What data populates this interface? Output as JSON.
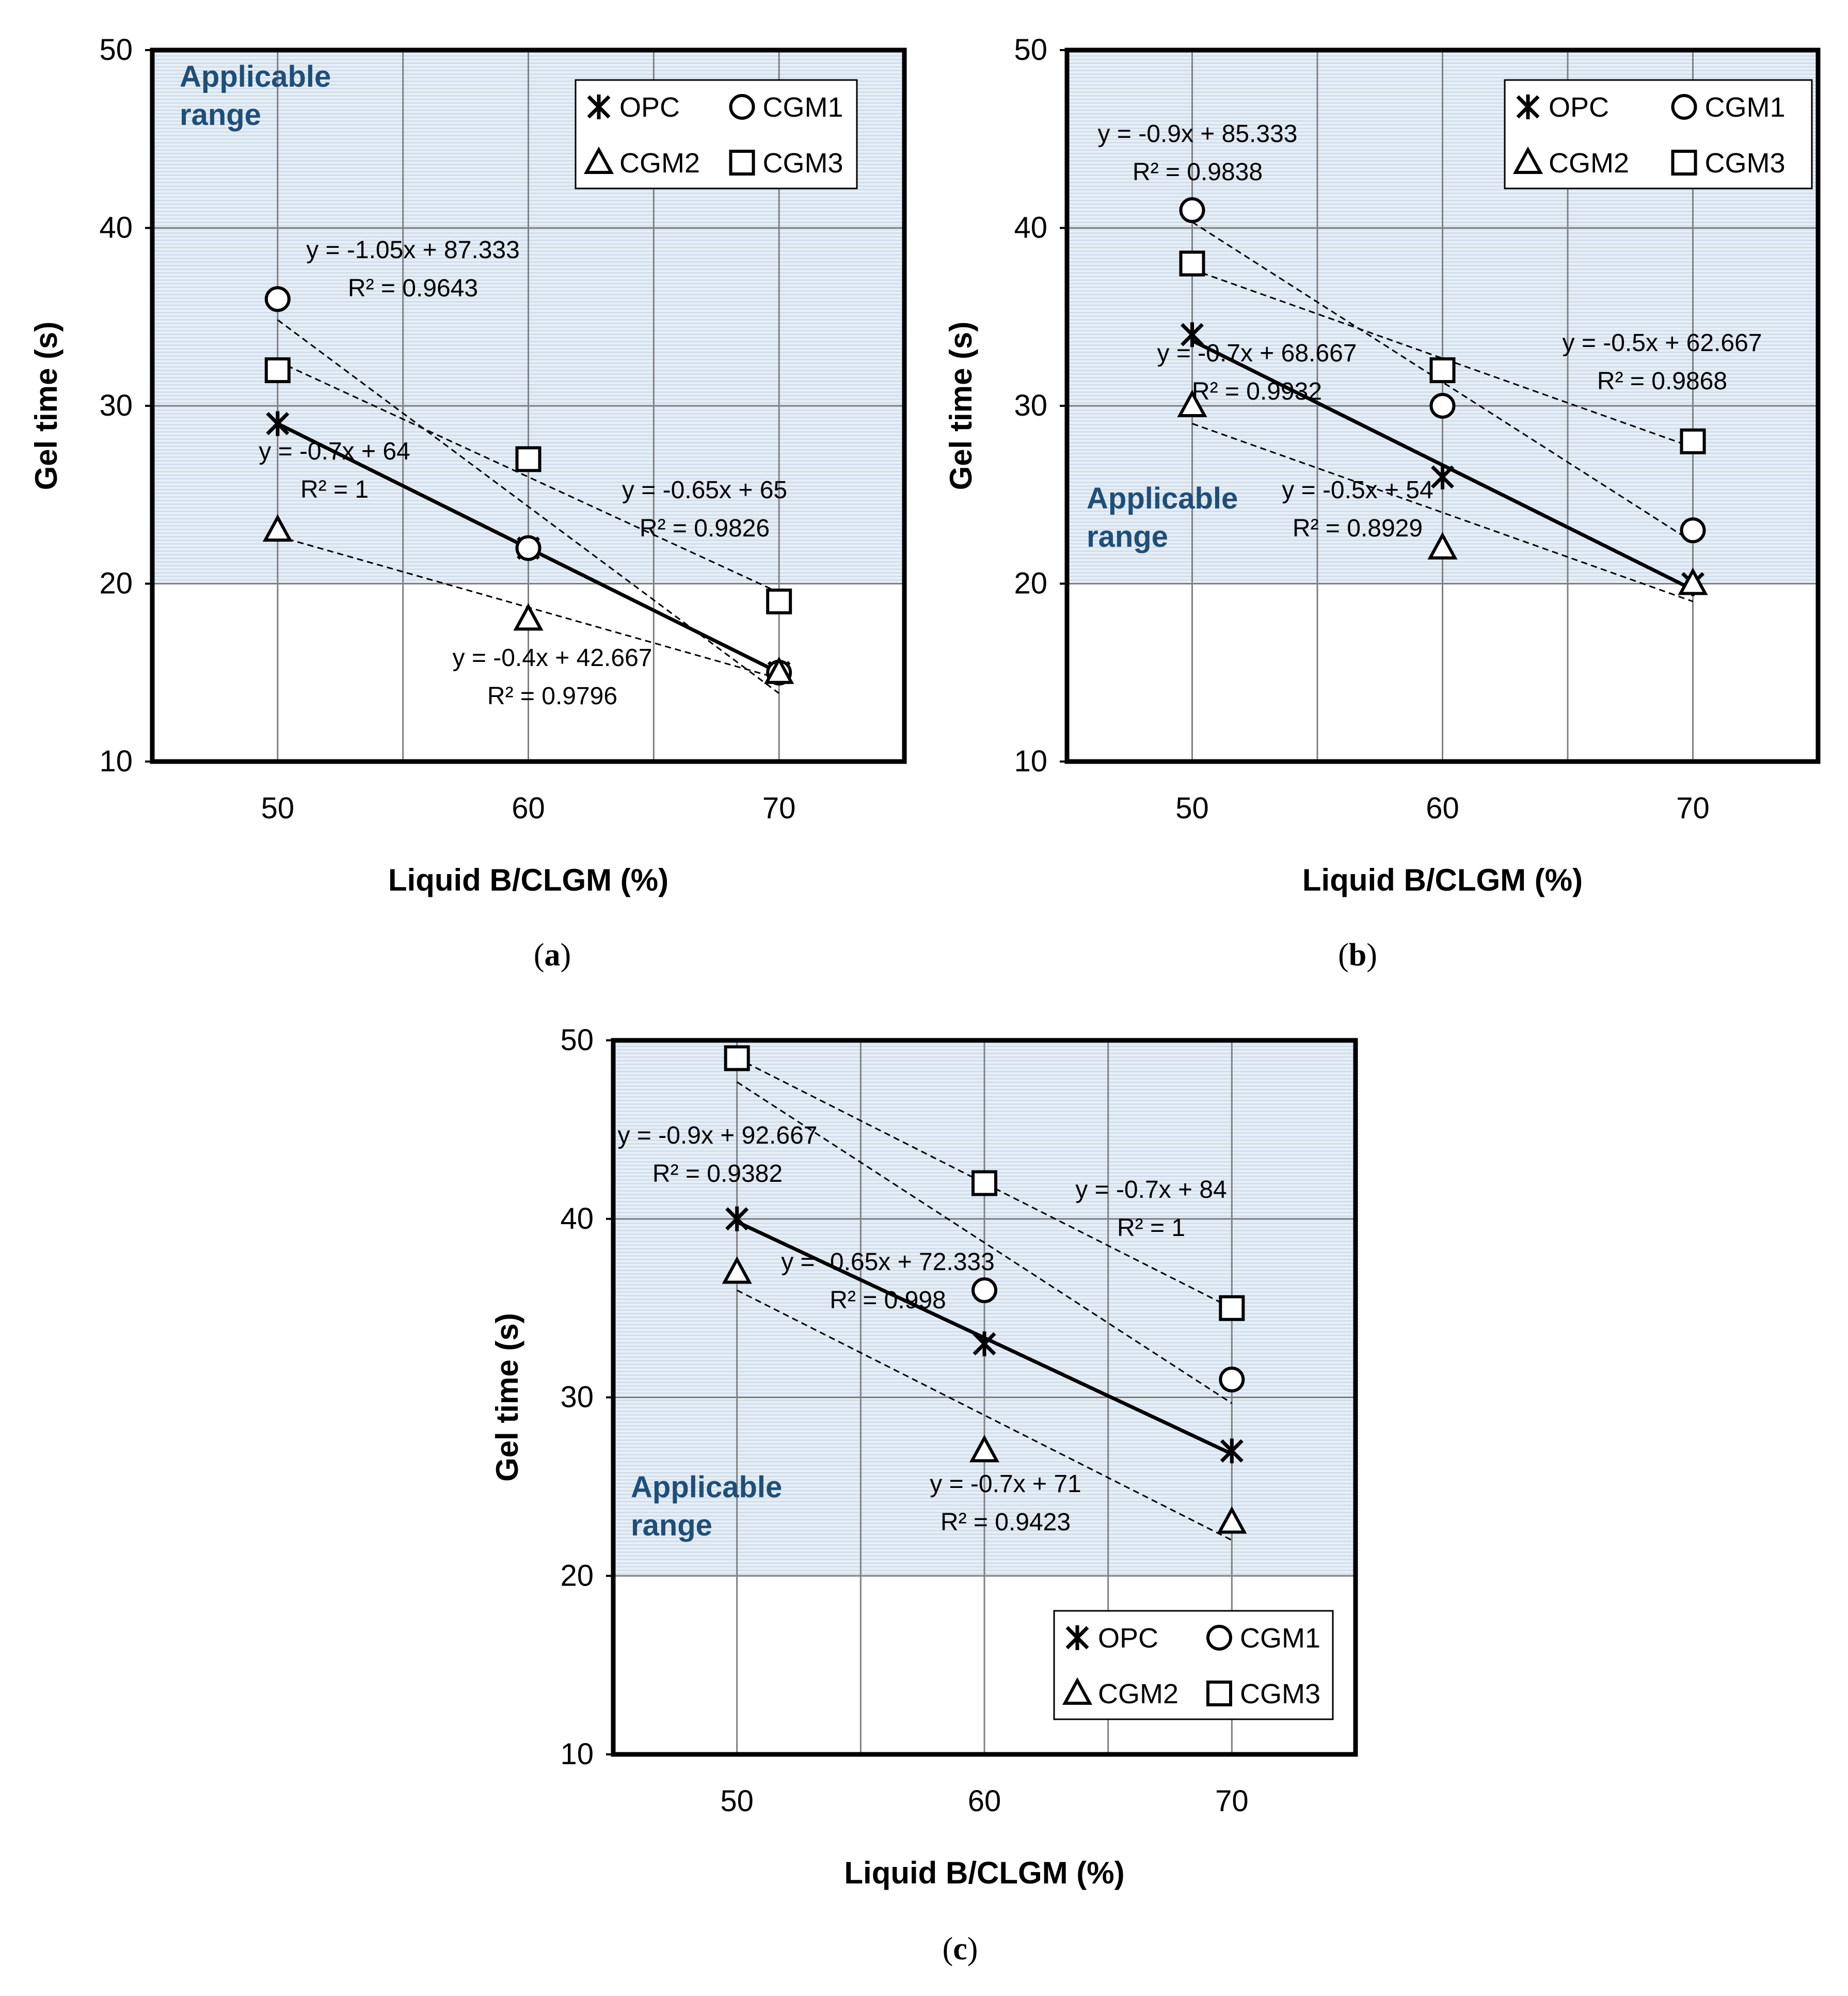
{
  "figure": {
    "colors": {
      "applicable_fill": "#e6eef6",
      "hatch_line": "#c9d8e6",
      "applicable_text": "#1f4e79",
      "grid": "#808080",
      "frame": "#000000"
    }
  },
  "chart_data": [
    {
      "type": "scatter",
      "panel_label": {
        "open": "(",
        "letter": "a",
        "close": ")"
      },
      "xlabel": "Liquid B/CLGM (%)",
      "ylabel": "Gel time (s)",
      "xlim": [
        45,
        75
      ],
      "ylim": [
        10,
        50
      ],
      "x_ticks": [
        50,
        60,
        70
      ],
      "y_ticks": [
        10,
        20,
        30,
        40,
        50
      ],
      "applicable_range": {
        "label_line1": "Applicable",
        "label_line2": "range",
        "y_min": 20,
        "y_max": 50
      },
      "legend": {
        "position": "top-right",
        "entries": [
          "OPC",
          "CGM1",
          "CGM2",
          "CGM3"
        ]
      },
      "series": [
        {
          "name": "OPC",
          "marker": "asterisk",
          "x": [
            50,
            60,
            70
          ],
          "values": [
            29,
            22,
            15
          ],
          "trend": {
            "slope": -0.7,
            "intercept": 64,
            "style": "solid",
            "eq": "y = -0.7x + 64",
            "r2": "R² = 1"
          }
        },
        {
          "name": "CGM1",
          "marker": "circle",
          "x": [
            50,
            60,
            70
          ],
          "values": [
            36,
            22,
            15
          ],
          "trend": {
            "slope": -1.05,
            "intercept": 87.333,
            "style": "dashed",
            "eq": "y = -1.05x + 87.333",
            "r2": "R² = 0.9643"
          }
        },
        {
          "name": "CGM2",
          "marker": "triangle",
          "x": [
            50,
            60,
            70
          ],
          "values": [
            23,
            18,
            15
          ],
          "trend": {
            "slope": -0.4,
            "intercept": 42.667,
            "style": "dashed",
            "eq": "y = -0.4x + 42.667",
            "r2": "R² = 0.9796"
          }
        },
        {
          "name": "CGM3",
          "marker": "square",
          "x": [
            50,
            60,
            70
          ],
          "values": [
            32,
            27,
            19
          ],
          "trend": {
            "slope": -0.65,
            "intercept": 65,
            "style": "dashed",
            "eq": "y = -0.65x + 65",
            "r2": "R² = 0.9826"
          }
        }
      ]
    },
    {
      "type": "scatter",
      "panel_label": {
        "open": "(",
        "letter": "b",
        "close": ")"
      },
      "xlabel": "Liquid B/CLGM (%)",
      "ylabel": "Gel time (s)",
      "xlim": [
        45,
        75
      ],
      "ylim": [
        10,
        50
      ],
      "x_ticks": [
        50,
        60,
        70
      ],
      "y_ticks": [
        10,
        20,
        30,
        40,
        50
      ],
      "applicable_range": {
        "label_line1": "Applicable",
        "label_line2": "range",
        "y_min": 20,
        "y_max": 50
      },
      "legend": {
        "position": "top-right",
        "entries": [
          "OPC",
          "CGM1",
          "CGM2",
          "CGM3"
        ]
      },
      "series": [
        {
          "name": "OPC",
          "marker": "asterisk",
          "x": [
            50,
            60,
            70
          ],
          "values": [
            34,
            26,
            20
          ],
          "trend": {
            "slope": -0.7,
            "intercept": 68.667,
            "style": "solid",
            "eq": "y = -0.7x + 68.667",
            "r2": "R² = 0.9932"
          }
        },
        {
          "name": "CGM1",
          "marker": "circle",
          "x": [
            50,
            60,
            70
          ],
          "values": [
            41,
            30,
            23
          ],
          "trend": {
            "slope": -0.9,
            "intercept": 85.333,
            "style": "dashed",
            "eq": "y = -0.9x + 85.333",
            "r2": "R² = 0.9838"
          }
        },
        {
          "name": "CGM2",
          "marker": "triangle",
          "x": [
            50,
            60,
            70
          ],
          "values": [
            30,
            22,
            20
          ],
          "trend": {
            "slope": -0.5,
            "intercept": 54,
            "style": "dashed",
            "eq": "y = -0.5x + 54",
            "r2": "R² = 0.8929"
          }
        },
        {
          "name": "CGM3",
          "marker": "square",
          "x": [
            50,
            60,
            70
          ],
          "values": [
            38,
            32,
            28
          ],
          "trend": {
            "slope": -0.5,
            "intercept": 62.667,
            "style": "dashed",
            "eq": "y = -0.5x + 62.667",
            "r2": "R² = 0.9868"
          }
        }
      ]
    },
    {
      "type": "scatter",
      "panel_label": {
        "open": "(",
        "letter": "c",
        "close": ")"
      },
      "xlabel": "Liquid B/CLGM (%)",
      "ylabel": "Gel time (s)",
      "xlim": [
        45,
        75
      ],
      "ylim": [
        10,
        50
      ],
      "x_ticks": [
        50,
        60,
        70
      ],
      "y_ticks": [
        10,
        20,
        30,
        40,
        50
      ],
      "applicable_range": {
        "label_line1": "Applicable",
        "label_line2": "range",
        "y_min": 20,
        "y_max": 50
      },
      "legend": {
        "position": "bottom-right",
        "entries": [
          "OPC",
          "CGM1",
          "CGM2",
          "CGM3"
        ]
      },
      "series": [
        {
          "name": "OPC",
          "marker": "asterisk",
          "x": [
            50,
            60,
            70
          ],
          "values": [
            40,
            33,
            27
          ],
          "trend": {
            "slope": -0.65,
            "intercept": 72.333,
            "style": "solid",
            "eq": "y = -0.65x + 72.333",
            "r2": "R² = 0.998"
          }
        },
        {
          "name": "CGM1",
          "marker": "circle",
          "x": [
            50,
            60,
            70
          ],
          "values": [
            49,
            36,
            31
          ],
          "trend": {
            "slope": -0.9,
            "intercept": 92.667,
            "style": "dashed",
            "eq": "y = -0.9x + 92.667",
            "r2": "R² = 0.9382"
          }
        },
        {
          "name": "CGM2",
          "marker": "triangle",
          "x": [
            50,
            60,
            70
          ],
          "values": [
            37,
            27,
            23
          ],
          "trend": {
            "slope": -0.7,
            "intercept": 71,
            "style": "dashed",
            "eq": "y = -0.7x + 71",
            "r2": "R² = 0.9423"
          }
        },
        {
          "name": "CGM3",
          "marker": "square",
          "x": [
            50,
            60,
            70
          ],
          "values": [
            49,
            42,
            35
          ],
          "trend": {
            "slope": -0.7,
            "intercept": 84,
            "style": "dashed",
            "eq": "y = -0.7x + 84",
            "r2": "R² = 1"
          }
        }
      ]
    }
  ]
}
